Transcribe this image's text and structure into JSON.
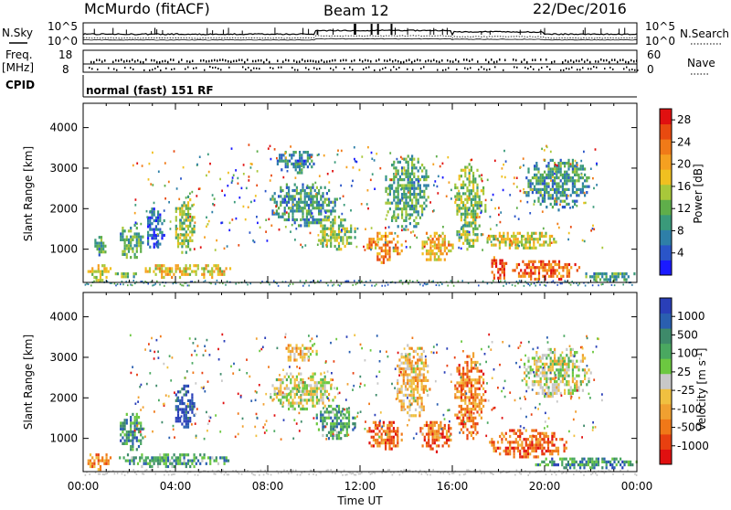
{
  "header": {
    "station": "McMurdo (fitACF)",
    "beam": "Beam 12",
    "date": "22/Dec/2016"
  },
  "noise_panel": {
    "left_label": "N.Sky",
    "right_label": "N.Search",
    "left_ticks": [
      "10^5",
      "10^0"
    ],
    "right_ticks": [
      "10^5",
      "10^0"
    ]
  },
  "freq_panel": {
    "left_label_1": "Freq.",
    "left_label_2": "[MHz]",
    "left_ticks": [
      "18",
      "8"
    ],
    "right_label": "Nave",
    "right_ticks": [
      "60",
      "0"
    ]
  },
  "cpid": {
    "label": "CPID",
    "program": "normal (fast) 151 RF"
  },
  "x_axis": {
    "label": "Time UT",
    "ticks": [
      "00:00",
      "04:00",
      "08:00",
      "12:00",
      "16:00",
      "20:00",
      "00:00"
    ]
  },
  "chart_data": [
    {
      "type": "heatmap",
      "name": "Power",
      "ylabel": "Slant Range [km]",
      "xlabel": "",
      "y_ticks": [
        1000,
        2000,
        3000,
        4000
      ],
      "ylim": [
        180,
        4600
      ],
      "xlim_hours": [
        0,
        24
      ],
      "colorbar": {
        "label": "Power [dB]",
        "ticks": [
          "4",
          "8",
          "12",
          "16",
          "20",
          "24",
          "28"
        ],
        "range": [
          0,
          30
        ],
        "colors": [
          "#1a1aff",
          "#2a55c8",
          "#2e7fa8",
          "#3a9a7a",
          "#5fae4a",
          "#a8c83a",
          "#f0c020",
          "#f5a020",
          "#f07a18",
          "#e84a10",
          "#e01010"
        ]
      },
      "regions": [
        {
          "t": [
            0.1,
            1.2
          ],
          "r": [
            250,
            700
          ],
          "level": 0.55
        },
        {
          "t": [
            1.2,
            2.5
          ],
          "r": [
            300,
            500
          ],
          "level": 0.4
        },
        {
          "t": [
            2.5,
            6.5
          ],
          "r": [
            300,
            700
          ],
          "level": 0.6
        },
        {
          "t": [
            0.4,
            1.0
          ],
          "r": [
            800,
            1400
          ],
          "level": 0.3
        },
        {
          "t": [
            1.5,
            2.6
          ],
          "r": [
            700,
            1700
          ],
          "level": 0.35
        },
        {
          "t": [
            2.6,
            3.5
          ],
          "r": [
            1000,
            2100
          ],
          "level": 0.2
        },
        {
          "t": [
            3.9,
            4.8
          ],
          "r": [
            900,
            2400
          ],
          "level": 0.45
        },
        {
          "t": [
            8.0,
            11.0
          ],
          "r": [
            1600,
            2700
          ],
          "level": 0.3
        },
        {
          "t": [
            8.3,
            10.0
          ],
          "r": [
            2900,
            3500
          ],
          "level": 0.25
        },
        {
          "t": [
            10.0,
            11.8
          ],
          "r": [
            1000,
            1900
          ],
          "level": 0.45
        },
        {
          "t": [
            12.2,
            13.8
          ],
          "r": [
            700,
            1500
          ],
          "level": 0.7
        },
        {
          "t": [
            13.0,
            15.0
          ],
          "r": [
            1500,
            3400
          ],
          "level": 0.35
        },
        {
          "t": [
            14.5,
            16.0
          ],
          "r": [
            700,
            1500
          ],
          "level": 0.65
        },
        {
          "t": [
            16.0,
            17.4
          ],
          "r": [
            1000,
            3200
          ],
          "level": 0.45
        },
        {
          "t": [
            17.6,
            18.4
          ],
          "r": [
            250,
            900
          ],
          "level": 0.85
        },
        {
          "t": [
            17.4,
            20.5
          ],
          "r": [
            1000,
            1500
          ],
          "level": 0.55
        },
        {
          "t": [
            18.5,
            21.5
          ],
          "r": [
            250,
            800
          ],
          "level": 0.8
        },
        {
          "t": [
            19.0,
            22.0
          ],
          "r": [
            2000,
            3300
          ],
          "level": 0.3
        },
        {
          "t": [
            21.5,
            24.0
          ],
          "r": [
            250,
            500
          ],
          "level": 0.35
        }
      ]
    },
    {
      "type": "heatmap",
      "name": "Velocity",
      "ylabel": "Slant Range [km]",
      "xlabel": "Time UT",
      "y_ticks": [
        1000,
        2000,
        3000,
        4000
      ],
      "ylim": [
        180,
        4600
      ],
      "xlim_hours": [
        0,
        24
      ],
      "colorbar": {
        "label": "Velocity [m s^-1]",
        "ticks": [
          "1000",
          "500",
          "100",
          "25",
          "-25",
          "-100",
          "-500",
          "-1000"
        ],
        "colors": [
          "#2a3fb8",
          "#2a5fb0",
          "#3e8a6a",
          "#4aa860",
          "#6cc840",
          "#c8c8c8",
          "#f0c040",
          "#f0a030",
          "#f07818",
          "#e84010",
          "#e01010"
        ]
      },
      "regions": [
        {
          "t": [
            0.1,
            1.2
          ],
          "r": [
            250,
            700
          ],
          "level": 0.75
        },
        {
          "t": [
            1.2,
            6.5
          ],
          "r": [
            300,
            700
          ],
          "level": 0.3
        },
        {
          "t": [
            1.5,
            2.6
          ],
          "r": [
            700,
            1700
          ],
          "level": 0.25
        },
        {
          "t": [
            3.9,
            4.8
          ],
          "r": [
            1200,
            2400
          ],
          "level": 0.05
        },
        {
          "t": [
            8.0,
            11.0
          ],
          "r": [
            1700,
            2700
          ],
          "level": 0.5
        },
        {
          "t": [
            8.6,
            10.2
          ],
          "r": [
            2900,
            3400
          ],
          "level": 0.6
        },
        {
          "t": [
            10.0,
            11.8
          ],
          "r": [
            1000,
            1900
          ],
          "level": 0.3
        },
        {
          "t": [
            12.2,
            13.8
          ],
          "r": [
            700,
            1500
          ],
          "level": 0.8
        },
        {
          "t": [
            13.5,
            15.0
          ],
          "r": [
            1500,
            3400
          ],
          "level": 0.62
        },
        {
          "t": [
            14.5,
            16.0
          ],
          "r": [
            700,
            1500
          ],
          "level": 0.8
        },
        {
          "t": [
            16.0,
            17.4
          ],
          "r": [
            1000,
            3200
          ],
          "level": 0.75
        },
        {
          "t": [
            17.5,
            21.0
          ],
          "r": [
            500,
            1300
          ],
          "level": 0.8
        },
        {
          "t": [
            19.0,
            22.0
          ],
          "r": [
            2000,
            3300
          ],
          "level": 0.5
        },
        {
          "t": [
            19.5,
            24.0
          ],
          "r": [
            250,
            600
          ],
          "level": 0.25
        }
      ]
    }
  ]
}
